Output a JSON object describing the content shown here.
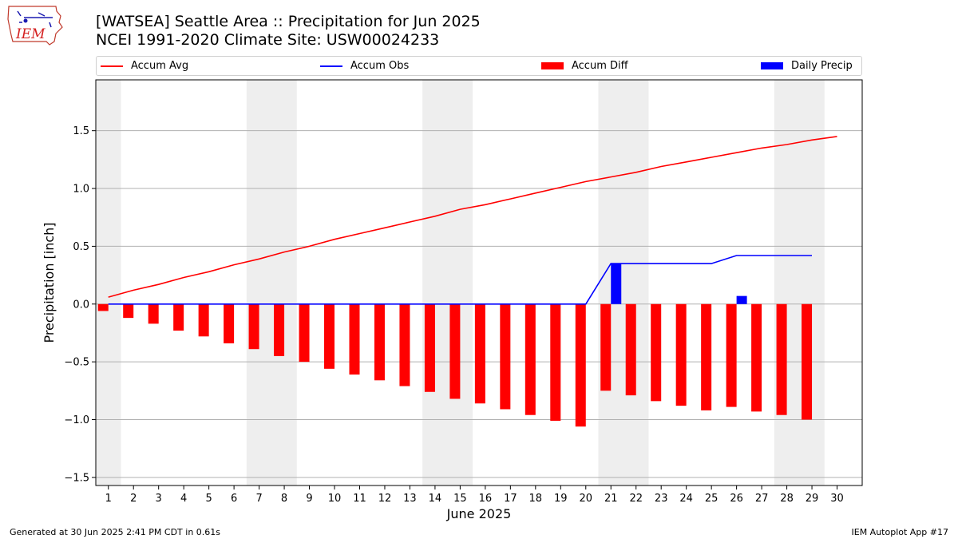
{
  "header": {
    "title_line1": "[WATSEA] Seattle Area :: Precipitation for Jun 2025",
    "title_line2": "NCEI 1991-2020 Climate Site: USW00024233"
  },
  "logo": {
    "text": "IEM",
    "icon": "iem-iowa-logo"
  },
  "footer": {
    "left": "Generated at 30 Jun 2025 2:41 PM CDT in 0.61s",
    "right": "IEM Autoplot App #17"
  },
  "colors": {
    "avg": "#ff0000",
    "obs": "#0000ff",
    "diff": "#ff0000",
    "daily": "#0000ff",
    "weekend": "#eeeeee"
  },
  "chart_data": {
    "type": "bar",
    "xlabel": "June 2025",
    "ylabel": "Precipitation [inch]",
    "ylim": [
      -1.57,
      1.94
    ],
    "xlim": [
      0.5,
      31.0
    ],
    "yticks": [
      -1.5,
      -1.0,
      -0.5,
      0.0,
      0.5,
      1.0,
      1.5
    ],
    "ytick_labels": [
      "−1.5",
      "−1.0",
      "−0.5",
      "0.0",
      "0.5",
      "1.0",
      "1.5"
    ],
    "x": [
      1,
      2,
      3,
      4,
      5,
      6,
      7,
      8,
      9,
      10,
      11,
      12,
      13,
      14,
      15,
      16,
      17,
      18,
      19,
      20,
      21,
      22,
      23,
      24,
      25,
      26,
      27,
      28,
      29,
      30
    ],
    "xtick_labels": [
      "1",
      "2",
      "3",
      "4",
      "5",
      "6",
      "7",
      "8",
      "9",
      "10",
      "11",
      "12",
      "13",
      "14",
      "15",
      "16",
      "17",
      "18",
      "19",
      "20",
      "21",
      "22",
      "23",
      "24",
      "25",
      "26",
      "27",
      "28",
      "29",
      "30"
    ],
    "grid": "horizontal",
    "legend_placement": "top",
    "weekend_shading": [
      [
        0.5,
        1.5
      ],
      [
        6.5,
        8.5
      ],
      [
        13.5,
        15.5
      ],
      [
        20.5,
        22.5
      ],
      [
        27.5,
        29.5
      ]
    ],
    "series": [
      {
        "name": "Accum Avg",
        "kind": "line",
        "color": "#ff0000",
        "x": [
          1,
          2,
          3,
          4,
          5,
          6,
          7,
          8,
          9,
          10,
          11,
          12,
          13,
          14,
          15,
          16,
          17,
          18,
          19,
          20,
          21,
          22,
          23,
          24,
          25,
          26,
          27,
          28,
          29,
          30
        ],
        "values": [
          0.06,
          0.12,
          0.17,
          0.23,
          0.28,
          0.34,
          0.39,
          0.45,
          0.5,
          0.56,
          0.61,
          0.66,
          0.71,
          0.76,
          0.82,
          0.86,
          0.91,
          0.96,
          1.01,
          1.06,
          1.1,
          1.14,
          1.19,
          1.23,
          1.27,
          1.31,
          1.35,
          1.38,
          1.42,
          1.45
        ]
      },
      {
        "name": "Accum Obs",
        "kind": "line",
        "color": "#0000ff",
        "x": [
          1,
          2,
          3,
          4,
          5,
          6,
          7,
          8,
          9,
          10,
          11,
          12,
          13,
          14,
          15,
          16,
          17,
          18,
          19,
          20,
          21,
          22,
          23,
          24,
          25,
          26,
          27,
          28,
          29
        ],
        "values": [
          0,
          0,
          0,
          0,
          0,
          0,
          0,
          0,
          0,
          0,
          0,
          0,
          0,
          0,
          0,
          0,
          0,
          0,
          0,
          0,
          0.35,
          0.35,
          0.35,
          0.35,
          0.35,
          0.42,
          0.42,
          0.42,
          0.42
        ]
      },
      {
        "name": "Accum Diff",
        "kind": "bar",
        "color": "#ff0000",
        "x": [
          1,
          2,
          3,
          4,
          5,
          6,
          7,
          8,
          9,
          10,
          11,
          12,
          13,
          14,
          15,
          16,
          17,
          18,
          19,
          20,
          21,
          22,
          23,
          24,
          25,
          26,
          27,
          28,
          29
        ],
        "values": [
          -0.06,
          -0.12,
          -0.17,
          -0.23,
          -0.28,
          -0.34,
          -0.39,
          -0.45,
          -0.5,
          -0.56,
          -0.61,
          -0.66,
          -0.71,
          -0.76,
          -0.82,
          -0.86,
          -0.91,
          -0.96,
          -1.01,
          -1.06,
          -0.75,
          -0.79,
          -0.84,
          -0.88,
          -0.92,
          -0.89,
          -0.93,
          -0.96,
          -1.0
        ]
      },
      {
        "name": "Daily Precip",
        "kind": "bar",
        "color": "#0000ff",
        "x": [
          21,
          26
        ],
        "values": [
          0.35,
          0.07
        ]
      }
    ]
  }
}
